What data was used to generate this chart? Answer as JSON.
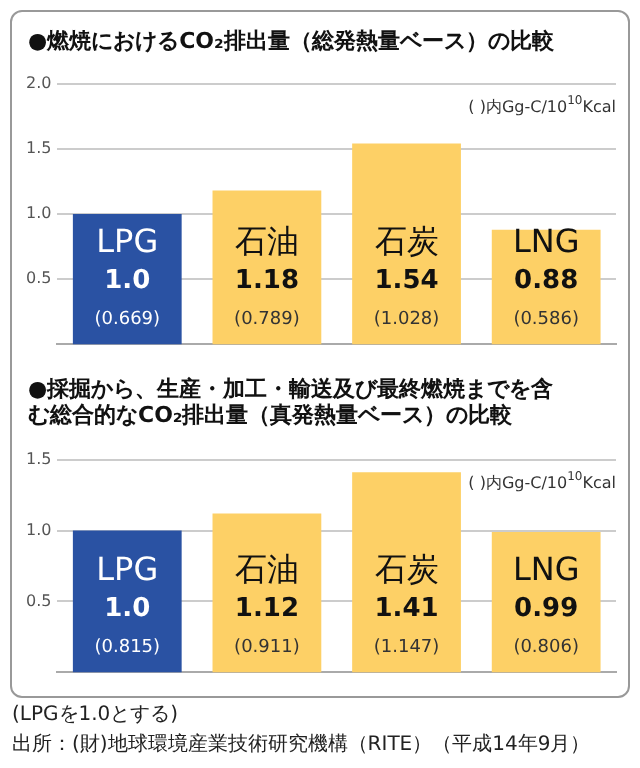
{
  "chart_data": [
    {
      "type": "bar",
      "title": "●燃焼におけるCO₂排出量（総発熱量ベース）の比較",
      "categories": [
        "LPG",
        "石油",
        "石炭",
        "LNG"
      ],
      "values": [
        1.0,
        1.18,
        1.54,
        0.88
      ],
      "colors": [
        "#2a52a3",
        "#fdd066",
        "#fdd066",
        "#fdd066"
      ],
      "value_labels": [
        "1.0",
        "1.18",
        "1.54",
        "0.88"
      ],
      "ylim": [
        0,
        2
      ],
      "yticks": [
        {
          "value": 0.5,
          "label": "0.5"
        },
        {
          "value": 1,
          "label": "1.0"
        },
        {
          "value": 1.5,
          "label": "1.5"
        },
        {
          "value": 2,
          "label": "2.0"
        }
      ],
      "grid": "y",
      "annotations": [
        "( )内Gg-C/10$^{10}$Kcal",
        "(0.669)",
        "(0.789)",
        "(1.028)",
        "(0.586)"
      ]
    },
    {
      "type": "bar",
      "title": "●採掘から、生産・加工・輸送及び最終燃焼までを含む総合的なCO₂排出量（真発熱量ベース）の比較",
      "categories": [
        "LPG",
        "石油",
        "石炭",
        "LNG"
      ],
      "values": [
        1.0,
        1.12,
        1.41,
        0.99
      ],
      "colors": [
        "#2a52a3",
        "#fdd066",
        "#fdd066",
        "#fdd066"
      ],
      "value_labels": [
        "1.0",
        "1.12",
        "1.41",
        "0.99"
      ],
      "ylim": [
        0,
        1.5
      ],
      "yticks": [
        {
          "value": 0.5,
          "label": "0.5"
        },
        {
          "value": 1,
          "label": "1.0"
        },
        {
          "value": 1.5,
          "label": "1.5"
        }
      ],
      "grid": "y",
      "annotations": [
        "( )内Gg-C/10$^{10}$Kcal",
        "(0.815)",
        "(0.911)",
        "(1.147)",
        "(0.806)",
        "(LPGを1.0とする)",
        "出所：(財)地球環境産業技術研究機構（RITE）（平成14年9月）"
      ]
    }
  ]
}
